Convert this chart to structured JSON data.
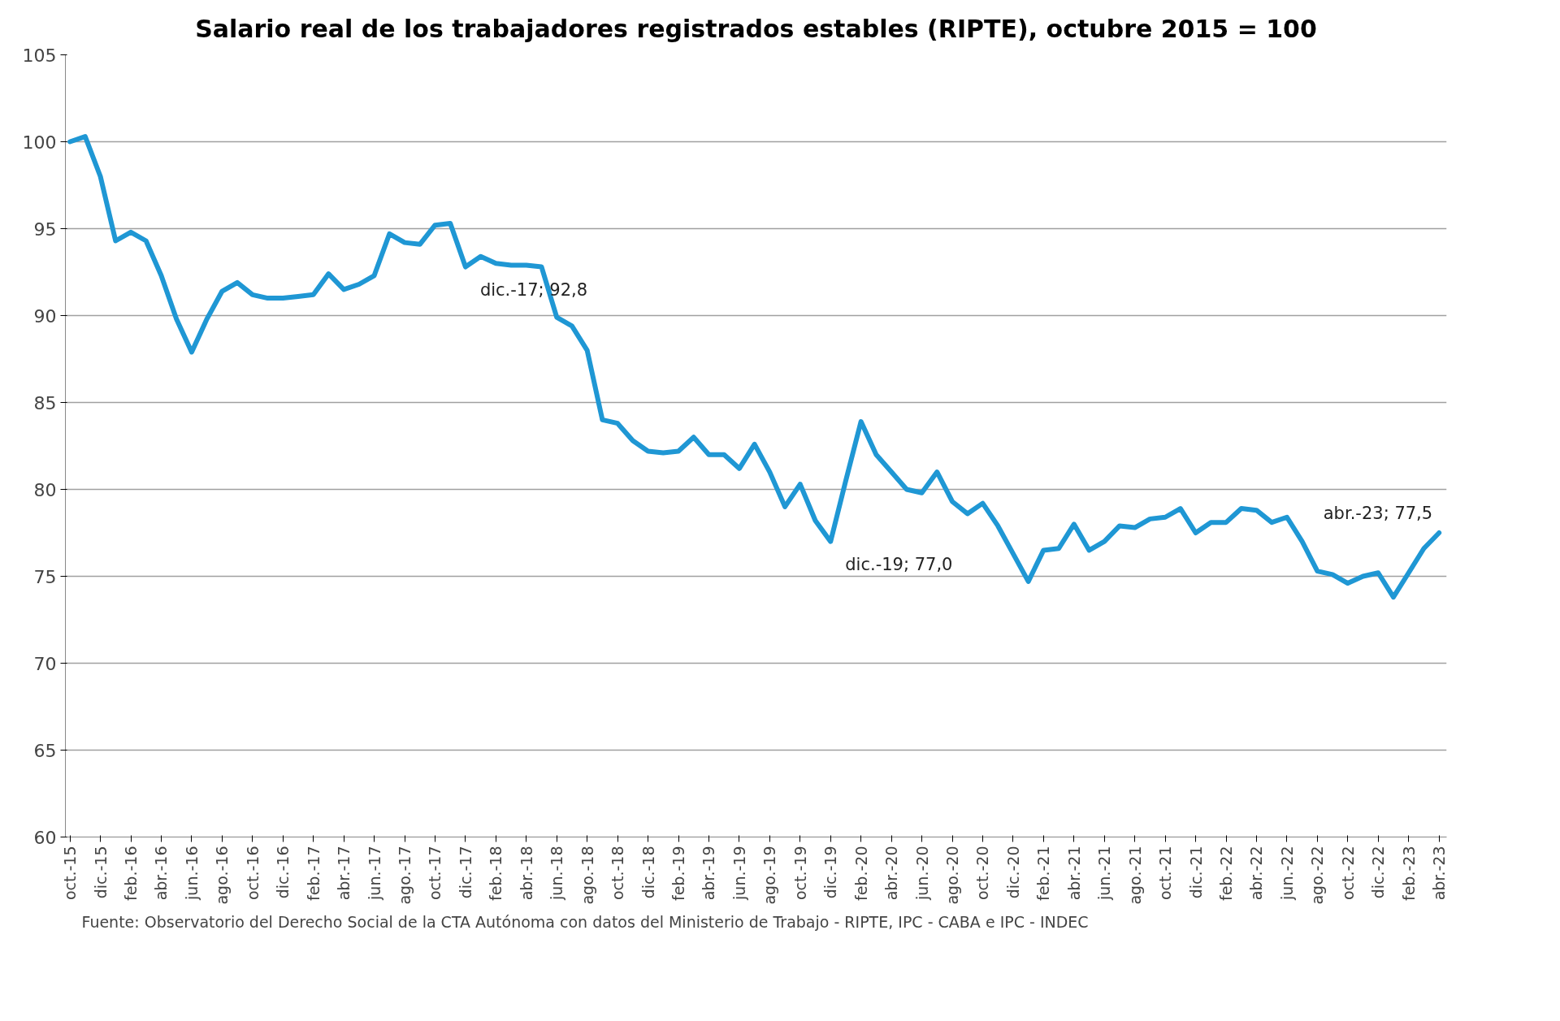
{
  "chart_data": {
    "type": "line",
    "title": "Salario real de los trabajadores registrados estables (RIPTE), octubre 2015 = 100",
    "categories": [
      "oct.-15",
      null,
      "dic.-15",
      null,
      "feb.-16",
      null,
      "abr.-16",
      null,
      "jun.-16",
      null,
      "ago.-16",
      null,
      "oct.-16",
      null,
      "dic.-16",
      null,
      "feb.-17",
      null,
      "abr.-17",
      null,
      "jun.-17",
      null,
      "ago.-17",
      null,
      "oct.-17",
      null,
      "dic.-17",
      null,
      "feb.-18",
      null,
      "abr.-18",
      null,
      "jun.-18",
      null,
      "ago.-18",
      null,
      "oct.-18",
      null,
      "dic.-18",
      null,
      "feb.-19",
      null,
      "abr.-19",
      null,
      "jun.-19",
      null,
      "ago.-19",
      null,
      "oct.-19",
      null,
      "dic.-19",
      null,
      "feb.-20",
      null,
      "abr.-20",
      null,
      "jun.-20",
      null,
      "ago.-20",
      null,
      "oct.-20",
      null,
      "dic.-20",
      null,
      "feb.-21",
      null,
      "abr.-21",
      null,
      "jun.-21",
      null,
      "ago.-21",
      null,
      "oct.-21",
      null,
      "dic.-21",
      null,
      "feb.-22",
      null,
      "abr.-22",
      null,
      "jun.-22",
      null,
      "ago.-22",
      null,
      "oct.-22",
      null,
      "dic.-22",
      null,
      "feb.-23",
      null,
      "abr.-23"
    ],
    "series": [
      {
        "color": "#1f97d4",
        "values": [
          100.0,
          100.3,
          98.0,
          94.3,
          94.8,
          94.3,
          92.3,
          89.8,
          87.9,
          89.8,
          91.4,
          91.9,
          91.2,
          91.0,
          91.0,
          91.1,
          91.2,
          92.4,
          91.5,
          91.8,
          92.3,
          94.7,
          94.2,
          94.1,
          95.2,
          95.3,
          92.8,
          93.4,
          93.0,
          92.9,
          92.9,
          92.8,
          89.9,
          89.4,
          88.0,
          84.0,
          83.8,
          82.8,
          82.2,
          82.1,
          82.2,
          83.0,
          82.0,
          82.0,
          81.2,
          82.6,
          81.0,
          79.0,
          80.3,
          78.2,
          77.0,
          80.5,
          83.9,
          82.0,
          81.0,
          80.0,
          79.8,
          81.0,
          79.3,
          78.6,
          79.2,
          77.9,
          76.3,
          74.7,
          76.5,
          76.6,
          78.0,
          76.5,
          77.0,
          77.9,
          77.8,
          78.3,
          78.4,
          78.9,
          77.5,
          78.1,
          78.1,
          78.9,
          78.8,
          78.1,
          78.4,
          77.0,
          75.3,
          75.1,
          74.6,
          75.0,
          75.2,
          73.8,
          75.2,
          76.6,
          77.5
        ]
      }
    ],
    "ylim": [
      60,
      105
    ],
    "yticks": [
      60,
      65,
      70,
      75,
      80,
      85,
      90,
      95,
      100,
      105
    ],
    "grid": "y",
    "marker": "none",
    "line_style": "solid",
    "annotations": [
      {
        "text": "dic.-17; 92,8",
        "x": "dic.-17",
        "y": 92.8
      },
      {
        "text": "dic.-19; 77,0",
        "x": "dic.-19",
        "y": 77.0
      },
      {
        "text": "abr.-23; 77,5",
        "x": "abr.-23",
        "y": 77.5
      },
      "Fuente: Observatorio del Derecho Social de la CTA Autónoma con datos del Ministerio de Trabajo - RIPTE, IPC - CABA e IPC - INDEC"
    ]
  }
}
